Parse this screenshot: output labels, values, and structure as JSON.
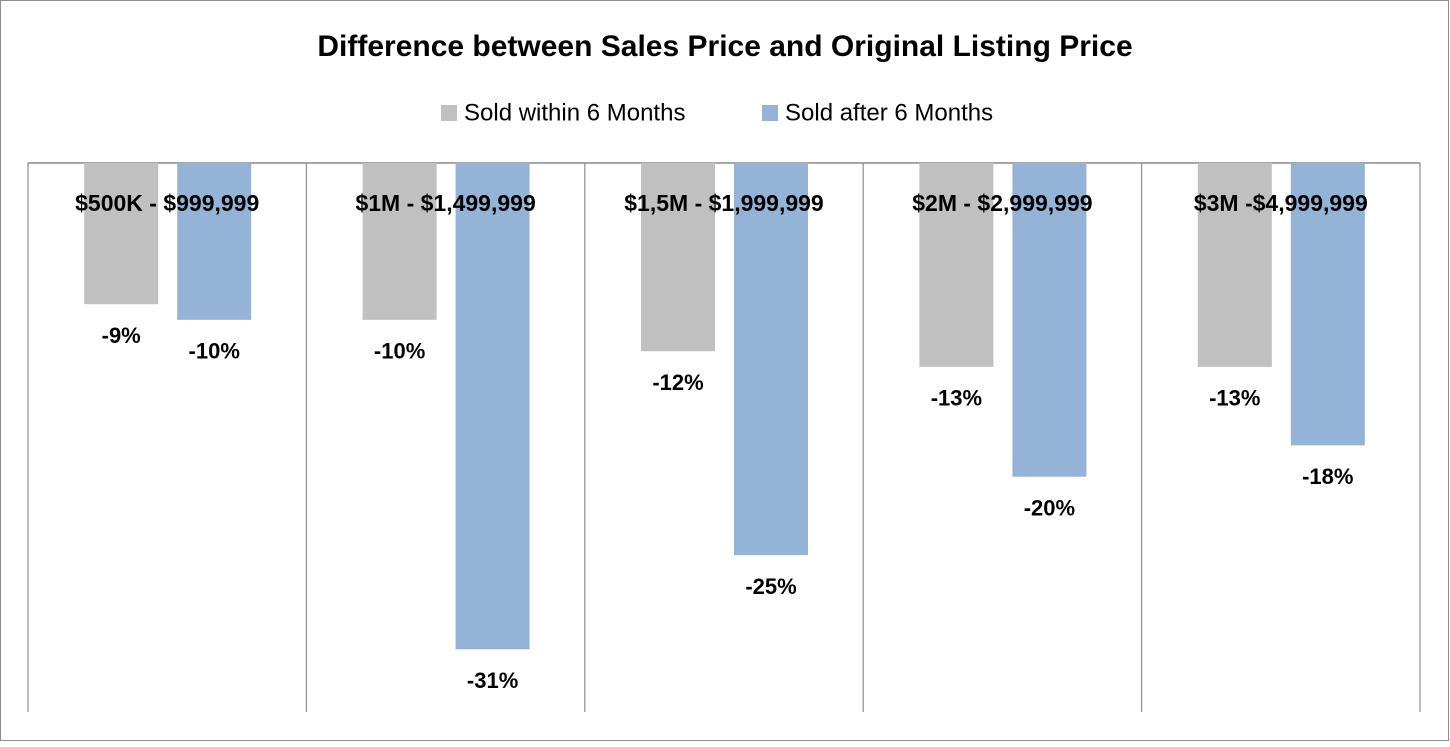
{
  "chart_data": {
    "type": "bar",
    "title": "Difference between Sales Price and Original Listing Price",
    "categories": [
      "$500K - $999,999",
      "$1M - $1,499,999",
      "$1,5M - $1,999,999",
      "$2M - $2,999,999",
      "$3M -$4,999,999"
    ],
    "series": [
      {
        "name": "Sold within 6 Months",
        "color": "#c0c0c0",
        "values": [
          -9,
          -10,
          -12,
          -13,
          -13
        ],
        "value_labels": [
          "-9%",
          "-10%",
          "-12%",
          "-13%",
          "-13%"
        ]
      },
      {
        "name": "Sold after 6 Months",
        "color": "#95b3d7",
        "values": [
          -10,
          -31,
          -25,
          -20,
          -18
        ],
        "value_labels": [
          "-10%",
          "-31%",
          "-25%",
          "-20%",
          "-18%"
        ]
      }
    ],
    "ylim": [
      -35,
      0
    ]
  }
}
